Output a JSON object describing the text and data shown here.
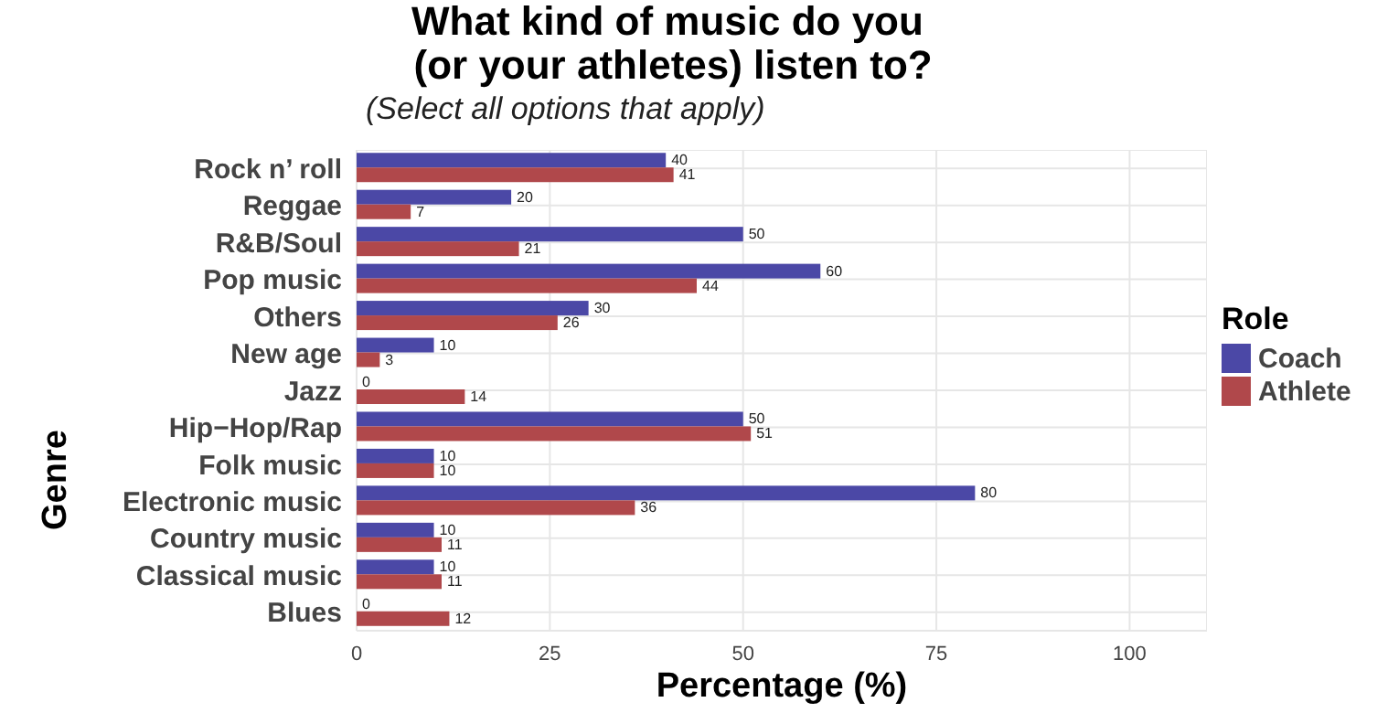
{
  "chart_data": {
    "type": "bar",
    "orientation": "horizontal",
    "title": "What kind of music do you\n (or your athletes) listen to?",
    "subtitle": "(Select all options that apply)",
    "xlabel": "Percentage (%)",
    "ylabel": "Genre",
    "legend_title": "Role",
    "legend": "right",
    "grid": true,
    "data_labels": true,
    "categories": [
      "Rock n’ roll",
      "Reggae",
      "R&B/Soul",
      "Pop music",
      "Others",
      "New age",
      "Jazz",
      "Hip−Hop/Rap",
      "Folk music",
      "Electronic music",
      "Country music",
      "Classical music",
      "Blues"
    ],
    "xlim": [
      0,
      110
    ],
    "xticks": [
      0,
      25,
      50,
      75,
      100
    ],
    "series": [
      {
        "name": "Coach",
        "color": "#4b48a6",
        "values": [
          40,
          20,
          50,
          60,
          30,
          10,
          0,
          50,
          10,
          80,
          10,
          10,
          0
        ]
      },
      {
        "name": "Athlete",
        "color": "#b0484b",
        "values": [
          41,
          7,
          21,
          44,
          26,
          3,
          14,
          51,
          10,
          36,
          11,
          11,
          12
        ]
      }
    ]
  }
}
